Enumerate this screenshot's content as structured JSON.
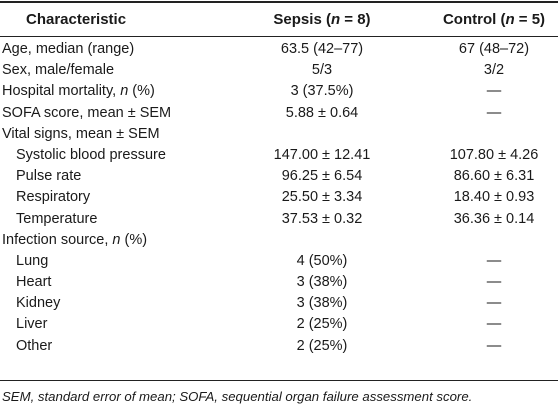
{
  "table": {
    "headers": {
      "characteristic": "Characteristic",
      "sepsis": "Sepsis (n = 8)",
      "control": "Control (n = 5)"
    },
    "rows": [
      {
        "label": "Age, median (range)",
        "sepsis": "63.5 (42–77)",
        "control": "67 (48–72)",
        "indent": false
      },
      {
        "label": "Sex, male/female",
        "sepsis": "5/3",
        "control": "3/2",
        "indent": false
      },
      {
        "label": "Hospital mortality, n (%)",
        "sepsis": "3 (37.5%)",
        "control": "—",
        "indent": false
      },
      {
        "label": "SOFA score, mean ± SEM",
        "sepsis": "5.88 ± 0.64",
        "control": "—",
        "indent": false
      },
      {
        "label": "Vital signs, mean ± SEM",
        "sepsis": "",
        "control": "",
        "indent": false
      },
      {
        "label": "Systolic blood pressure",
        "sepsis": "147.00 ± 12.41",
        "control": "107.80 ± 4.26",
        "indent": true
      },
      {
        "label": "Pulse rate",
        "sepsis": "96.25 ± 6.54",
        "control": "86.60 ± 6.31",
        "indent": true
      },
      {
        "label": "Respiratory",
        "sepsis": "25.50 ± 3.34",
        "control": "18.40 ± 0.93",
        "indent": true
      },
      {
        "label": "Temperature",
        "sepsis": "37.53 ± 0.32",
        "control": "36.36 ± 0.14",
        "indent": true
      },
      {
        "label": "Infection source, n (%)",
        "sepsis": "",
        "control": "",
        "indent": false
      },
      {
        "label": "Lung",
        "sepsis": "4 (50%)",
        "control": "—",
        "indent": true
      },
      {
        "label": "Heart",
        "sepsis": "3 (38%)",
        "control": "—",
        "indent": true
      },
      {
        "label": "Kidney",
        "sepsis": "3 (38%)",
        "control": "—",
        "indent": true
      },
      {
        "label": "Liver",
        "sepsis": "2 (25%)",
        "control": "—",
        "indent": true
      },
      {
        "label": "Other",
        "sepsis": "2 (25%)",
        "control": "—",
        "indent": true
      }
    ],
    "footnote": "SEM, standard error of mean; SOFA, sequential organ failure assessment score."
  }
}
